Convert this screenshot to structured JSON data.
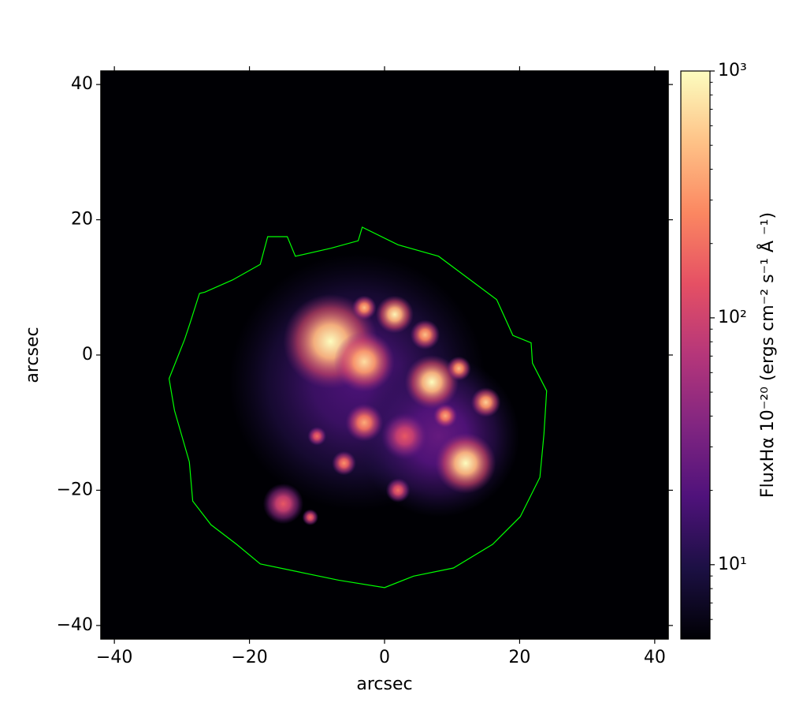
{
  "chart_data": {
    "type": "image",
    "xlabel": "arcsec",
    "ylabel": "arcsec",
    "xlim": [
      -42,
      42
    ],
    "ylim": [
      -42,
      42
    ],
    "xticks": [
      {
        "value": -40,
        "label": "−40"
      },
      {
        "value": -20,
        "label": "−20"
      },
      0,
      20,
      40
    ],
    "yticks": [
      {
        "value": -40,
        "label": "−40"
      },
      {
        "value": -20,
        "label": "−20"
      },
      0,
      20,
      40
    ],
    "colorbar_label": "FluxHα 10⁻²⁰ (ergs cm⁻² s⁻¹ Å ⁻¹)",
    "clim": [
      5,
      1000
    ],
    "log_scale": true,
    "cticks": [
      {
        "value": 10,
        "label": "10¹"
      },
      {
        "value": 100,
        "label": "10²"
      },
      {
        "value": 1000,
        "label": "10³"
      }
    ],
    "cticks_minor": [
      6,
      7,
      8,
      9,
      20,
      30,
      40,
      50,
      60,
      70,
      80,
      90,
      200,
      300,
      400,
      500,
      600,
      700,
      800,
      900
    ],
    "colormap": [
      "#000004",
      "#1c1044",
      "#4f127b",
      "#812581",
      "#b5367a",
      "#e55064",
      "#fb8761",
      "#fec287",
      "#fcfdbf"
    ],
    "sources": [
      {
        "x": -4,
        "y": -4,
        "flux": 18,
        "r": 19
      },
      {
        "x": 8,
        "y": -12,
        "flux": 25,
        "r": 12
      },
      {
        "x": -8,
        "y": 2,
        "flux": 1000,
        "r": 7
      },
      {
        "x": -3,
        "y": -1,
        "flux": 700,
        "r": 4.5
      },
      {
        "x": 1.5,
        "y": 6,
        "flux": 900,
        "r": 2.8
      },
      {
        "x": 7,
        "y": -4,
        "flux": 1000,
        "r": 4
      },
      {
        "x": 12,
        "y": -16,
        "flux": 1000,
        "r": 4.5
      },
      {
        "x": -3,
        "y": -10,
        "flux": 400,
        "r": 2.8
      },
      {
        "x": 15,
        "y": -7,
        "flux": 600,
        "r": 2.2
      },
      {
        "x": 11,
        "y": -2,
        "flux": 500,
        "r": 1.8
      },
      {
        "x": 9,
        "y": -9,
        "flux": 400,
        "r": 1.8
      },
      {
        "x": -15,
        "y": -22,
        "flux": 150,
        "r": 3
      },
      {
        "x": -6,
        "y": -16,
        "flux": 300,
        "r": 1.8
      },
      {
        "x": 2,
        "y": -20,
        "flux": 200,
        "r": 1.8
      },
      {
        "x": -10,
        "y": -12,
        "flux": 200,
        "r": 1.4
      },
      {
        "x": -3,
        "y": 7,
        "flux": 500,
        "r": 1.8
      },
      {
        "x": 6,
        "y": 3,
        "flux": 500,
        "r": 2.2
      },
      {
        "x": 3,
        "y": -12,
        "flux": 150,
        "r": 3.5
      },
      {
        "x": -11,
        "y": -24,
        "flux": 200,
        "r": 1.2
      }
    ],
    "outline": {
      "color": "#00ff00",
      "x": [
        -27.4,
        -28.8,
        -29.6,
        -31.9,
        -31.1,
        -28.9,
        -28.4,
        -25.7,
        -21.9,
        -18.4,
        -12.6,
        -6.8,
        0,
        4.3,
        10.2,
        16,
        20.1,
        23,
        23.6,
        24,
        21.9,
        21.7,
        19,
        16.6,
        11.9,
        8,
        2,
        -3.3,
        -3.9,
        -7.9,
        -13.2,
        -14.4,
        -17.3,
        -18.4,
        -22.5,
        -26.6
      ],
      "y": [
        9.1,
        4.7,
        2.3,
        -3.5,
        -8.2,
        -15.8,
        -21.6,
        -25.1,
        -28,
        -30.9,
        -32.1,
        -33.3,
        -34.4,
        -32.7,
        -31.5,
        -28,
        -23.9,
        -18.1,
        -11.7,
        -5.3,
        -1.2,
        1.8,
        2.9,
        8.2,
        11.7,
        14.6,
        16.3,
        18.9,
        16.9,
        15.8,
        14.6,
        17.5,
        17.5,
        13.4,
        11.1,
        9.3
      ]
    }
  }
}
